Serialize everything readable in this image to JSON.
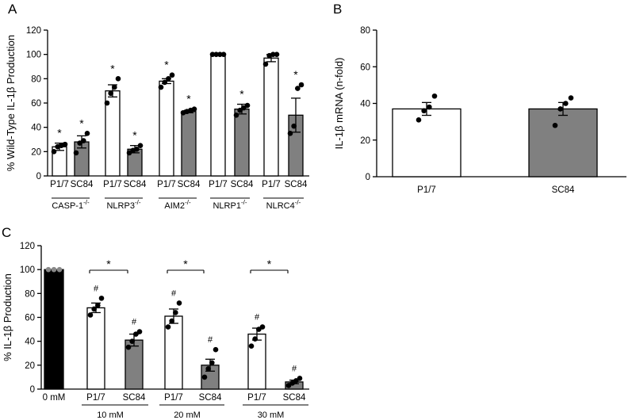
{
  "chart_data": [
    {
      "panel": "A",
      "type": "bar",
      "ylabel": "% Wild-Type IL-1β Production",
      "ylim": [
        0,
        120
      ],
      "yticks": [
        0,
        20,
        40,
        60,
        80,
        100,
        120
      ],
      "groups": [
        {
          "label": "CASP-1",
          "sup": "-/-",
          "bars": [
            {
              "category": "P1/7",
              "fill": "white",
              "value": 24,
              "sem": 3,
              "points": [
                20,
                24,
                25,
                26
              ],
              "annotation": "*"
            },
            {
              "category": "SC84",
              "fill": "gray",
              "value": 28,
              "sem": 5,
              "points": [
                19,
                27,
                29,
                35
              ],
              "annotation": "*"
            }
          ]
        },
        {
          "label": "NLRP3",
          "sup": "-/-",
          "bars": [
            {
              "category": "P1/7",
              "fill": "white",
              "value": 70,
              "sem": 5,
              "points": [
                60,
                68,
                73,
                80
              ],
              "annotation": "*"
            },
            {
              "category": "SC84",
              "fill": "gray",
              "value": 22,
              "sem": 3,
              "points": [
                19,
                21,
                22,
                25
              ],
              "annotation": "*"
            }
          ]
        },
        {
          "label": "AIM2",
          "sup": "-/-",
          "bars": [
            {
              "category": "P1/7",
              "fill": "white",
              "value": 78,
              "sem": 2,
              "points": [
                73,
                77,
                80,
                83
              ],
              "annotation": "*"
            },
            {
              "category": "SC84",
              "fill": "gray",
              "value": 53,
              "sem": 1,
              "points": [
                52,
                53,
                54,
                55
              ],
              "annotation": "*"
            }
          ]
        },
        {
          "label": "NLRP1",
          "sup": "-/-",
          "bars": [
            {
              "category": "P1/7",
              "fill": "white",
              "value": 100,
              "sem": 0,
              "points": [
                100,
                100,
                100,
                100
              ],
              "annotation": ""
            },
            {
              "category": "SC84",
              "fill": "gray",
              "value": 55,
              "sem": 4,
              "points": [
                50,
                54,
                56,
                58
              ],
              "annotation": "*"
            }
          ]
        },
        {
          "label": "NLRC4",
          "sup": "-/-",
          "bars": [
            {
              "category": "P1/7",
              "fill": "white",
              "value": 97,
              "sem": 3,
              "points": [
                92,
                99,
                100,
                100
              ],
              "annotation": ""
            },
            {
              "category": "SC84",
              "fill": "gray",
              "value": 50,
              "sem": 14,
              "points": [
                35,
                41,
                72,
                75
              ],
              "annotation": "*"
            }
          ]
        }
      ]
    },
    {
      "panel": "B",
      "type": "bar",
      "ylabel": "IL-1β mRNA (n-fold)",
      "ylim": [
        0,
        80
      ],
      "yticks": [
        0,
        20,
        40,
        60,
        80
      ],
      "bars": [
        {
          "category": "P1/7",
          "fill": "white",
          "value": 37,
          "sem": 3.5,
          "points": [
            31,
            36,
            38,
            44
          ]
        },
        {
          "category": "SC84",
          "fill": "gray",
          "value": 37,
          "sem": 3.5,
          "points": [
            28,
            37,
            40,
            43
          ]
        }
      ]
    },
    {
      "panel": "C",
      "type": "bar",
      "ylabel": "% IL-1β Production",
      "ylim": [
        0,
        120
      ],
      "yticks": [
        0,
        20,
        40,
        60,
        80,
        100,
        120
      ],
      "control": {
        "category": "0 mM",
        "fill": "black",
        "value": 100,
        "points": [
          100,
          100,
          100
        ]
      },
      "groups": [
        {
          "label": "10 mM",
          "significance": "*",
          "bars": [
            {
              "category": "P1/7",
              "fill": "white",
              "value": 68,
              "sem": 4,
              "points": [
                62,
                67,
                70,
                76
              ],
              "annotation": "#"
            },
            {
              "category": "SC84",
              "fill": "gray",
              "value": 41,
              "sem": 5,
              "points": [
                35,
                40,
                46,
                48
              ],
              "annotation": "#"
            }
          ]
        },
        {
          "label": "20 mM",
          "significance": "*",
          "bars": [
            {
              "category": "P1/7",
              "fill": "white",
              "value": 61,
              "sem": 6,
              "points": [
                52,
                57,
                64,
                72
              ],
              "annotation": "#"
            },
            {
              "category": "SC84",
              "fill": "gray",
              "value": 20,
              "sem": 5,
              "points": [
                10,
                17,
                22,
                33
              ],
              "annotation": "#"
            }
          ]
        },
        {
          "label": "30 mM",
          "significance": "*",
          "bars": [
            {
              "category": "P1/7",
              "fill": "white",
              "value": 46,
              "sem": 5,
              "points": [
                36,
                42,
                50,
                52
              ],
              "annotation": "#"
            },
            {
              "category": "SC84",
              "fill": "gray",
              "value": 6,
              "sem": 1.5,
              "points": [
                3,
                5,
                7,
                9
              ],
              "annotation": "#"
            }
          ]
        }
      ]
    }
  ]
}
